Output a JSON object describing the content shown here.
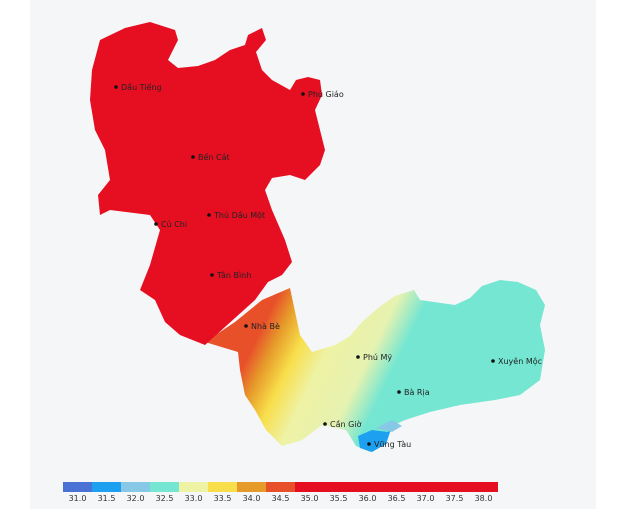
{
  "map": {
    "places": [
      {
        "name": "Dầu Tiếng"
      },
      {
        "name": "Phú Giáo"
      },
      {
        "name": "Bến Cát"
      },
      {
        "name": "Thủ Dầu Một"
      },
      {
        "name": "Củ Chi"
      },
      {
        "name": "Tân Bình"
      },
      {
        "name": "Nhà Bè"
      },
      {
        "name": "Phú Mỹ"
      },
      {
        "name": "Xuyên Mộc"
      },
      {
        "name": "Bà Rịa"
      },
      {
        "name": "Cần Giờ"
      },
      {
        "name": "Vũng Tàu"
      }
    ]
  },
  "legend": {
    "ticks": [
      "31.0",
      "31.5",
      "32.0",
      "32.5",
      "33.0",
      "33.5",
      "34.0",
      "34.5",
      "35.0",
      "35.5",
      "36.0",
      "36.5",
      "37.0",
      "37.5",
      "38.0"
    ],
    "colors": [
      "#4a72d4",
      "#1ea0f0",
      "#86c8e6",
      "#74e6d2",
      "#eef2a4",
      "#f8de4a",
      "#e69a2a",
      "#e8502a",
      "#e60f22",
      "#e60f22",
      "#e60f22",
      "#e60f22",
      "#e60f22",
      "#e60f22",
      "#e60f22"
    ]
  }
}
